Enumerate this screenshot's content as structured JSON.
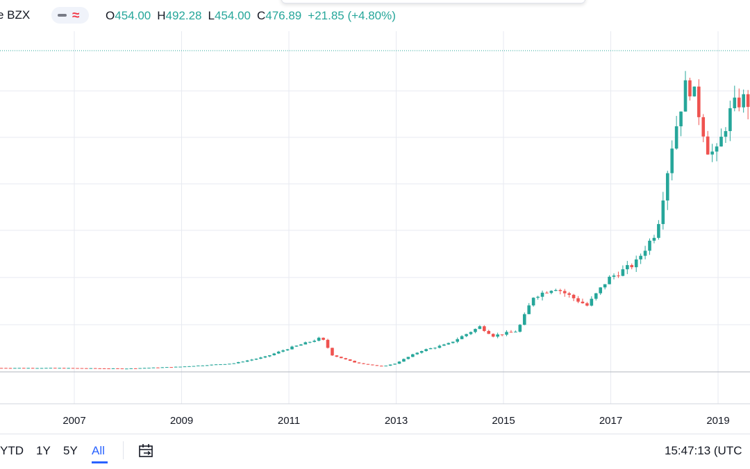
{
  "header": {
    "symbol": "e BZX",
    "ohlc": {
      "o_label": "O",
      "o_value": "454.00",
      "h_label": "H",
      "h_value": "492.28",
      "l_label": "L",
      "l_value": "454.00",
      "c_label": "C",
      "c_value": "476.89",
      "change": "+21.85 (+4.80%)"
    },
    "icons": [
      "minus-icon",
      "wave-icon"
    ]
  },
  "colors": {
    "up": "#26a69a",
    "down": "#ef5350",
    "grid": "#e7eaf0",
    "text": "#131722",
    "accent": "#2962ff",
    "price_line": "#26a69a"
  },
  "range_bar": {
    "buttons": [
      "YTD",
      "1Y",
      "5Y",
      "All"
    ],
    "active": "All",
    "time": "15:47:13 (UTC"
  },
  "chart_data": {
    "type": "candlestick",
    "interval": "monthly",
    "x_ticks": [
      "2007",
      "2009",
      "2011",
      "2013",
      "2015",
      "2017",
      "2019"
    ],
    "segments": [
      {
        "from": 2005.6,
        "to": 2006.7,
        "value": 6.5
      },
      {
        "from": 2006.7,
        "to": 2008.0,
        "value": 5.5
      },
      {
        "from": 2008.0,
        "to": 2009.0,
        "value": 8.5
      },
      {
        "from": 2009.0,
        "to": 2010.0,
        "value": 14
      },
      {
        "from": 2010.0,
        "to": 2010.6,
        "value": 25
      },
      {
        "from": 2010.6,
        "to": 2011.0,
        "value": 38
      },
      {
        "from": 2011.0,
        "to": 2011.5,
        "value": 52
      },
      {
        "from": 2011.5,
        "to": 2011.65,
        "value": 57
      },
      {
        "from": 2011.65,
        "to": 2011.85,
        "value": 28
      },
      {
        "from": 2011.85,
        "to": 2012.25,
        "value": 16
      },
      {
        "from": 2012.25,
        "to": 2012.75,
        "value": 9
      },
      {
        "from": 2012.75,
        "to": 2013.0,
        "value": 13
      },
      {
        "from": 2013.0,
        "to": 2013.5,
        "value": 35
      },
      {
        "from": 2013.5,
        "to": 2014.0,
        "value": 46
      },
      {
        "from": 2014.0,
        "to": 2014.6,
        "value": 75
      },
      {
        "from": 2014.6,
        "to": 2014.85,
        "value": 60
      },
      {
        "from": 2014.85,
        "to": 2015.3,
        "value": 68
      },
      {
        "from": 2015.3,
        "to": 2015.6,
        "value": 125
      },
      {
        "from": 2015.6,
        "to": 2016.0,
        "value": 140
      },
      {
        "from": 2016.0,
        "to": 2016.6,
        "value": 110
      },
      {
        "from": 2016.6,
        "to": 2017.0,
        "value": 155
      },
      {
        "from": 2017.0,
        "to": 2017.5,
        "value": 180
      },
      {
        "from": 2017.5,
        "to": 2017.9,
        "value": 235
      },
      {
        "from": 2017.9,
        "to": 2018.2,
        "value": 385
      },
      {
        "from": 2018.2,
        "to": 2018.45,
        "value": 480
      },
      {
        "from": 2018.45,
        "to": 2018.6,
        "value": 460
      },
      {
        "from": 2018.6,
        "to": 2018.85,
        "value": 370
      },
      {
        "from": 2018.85,
        "to": 2019.0,
        "value": 360
      },
      {
        "from": 2019.0,
        "to": 2019.3,
        "value": 440
      },
      {
        "from": 2019.3,
        "to": 2019.55,
        "value": 455
      },
      {
        "from": 2019.55,
        "to": 2019.7,
        "value": 430
      }
    ]
  }
}
